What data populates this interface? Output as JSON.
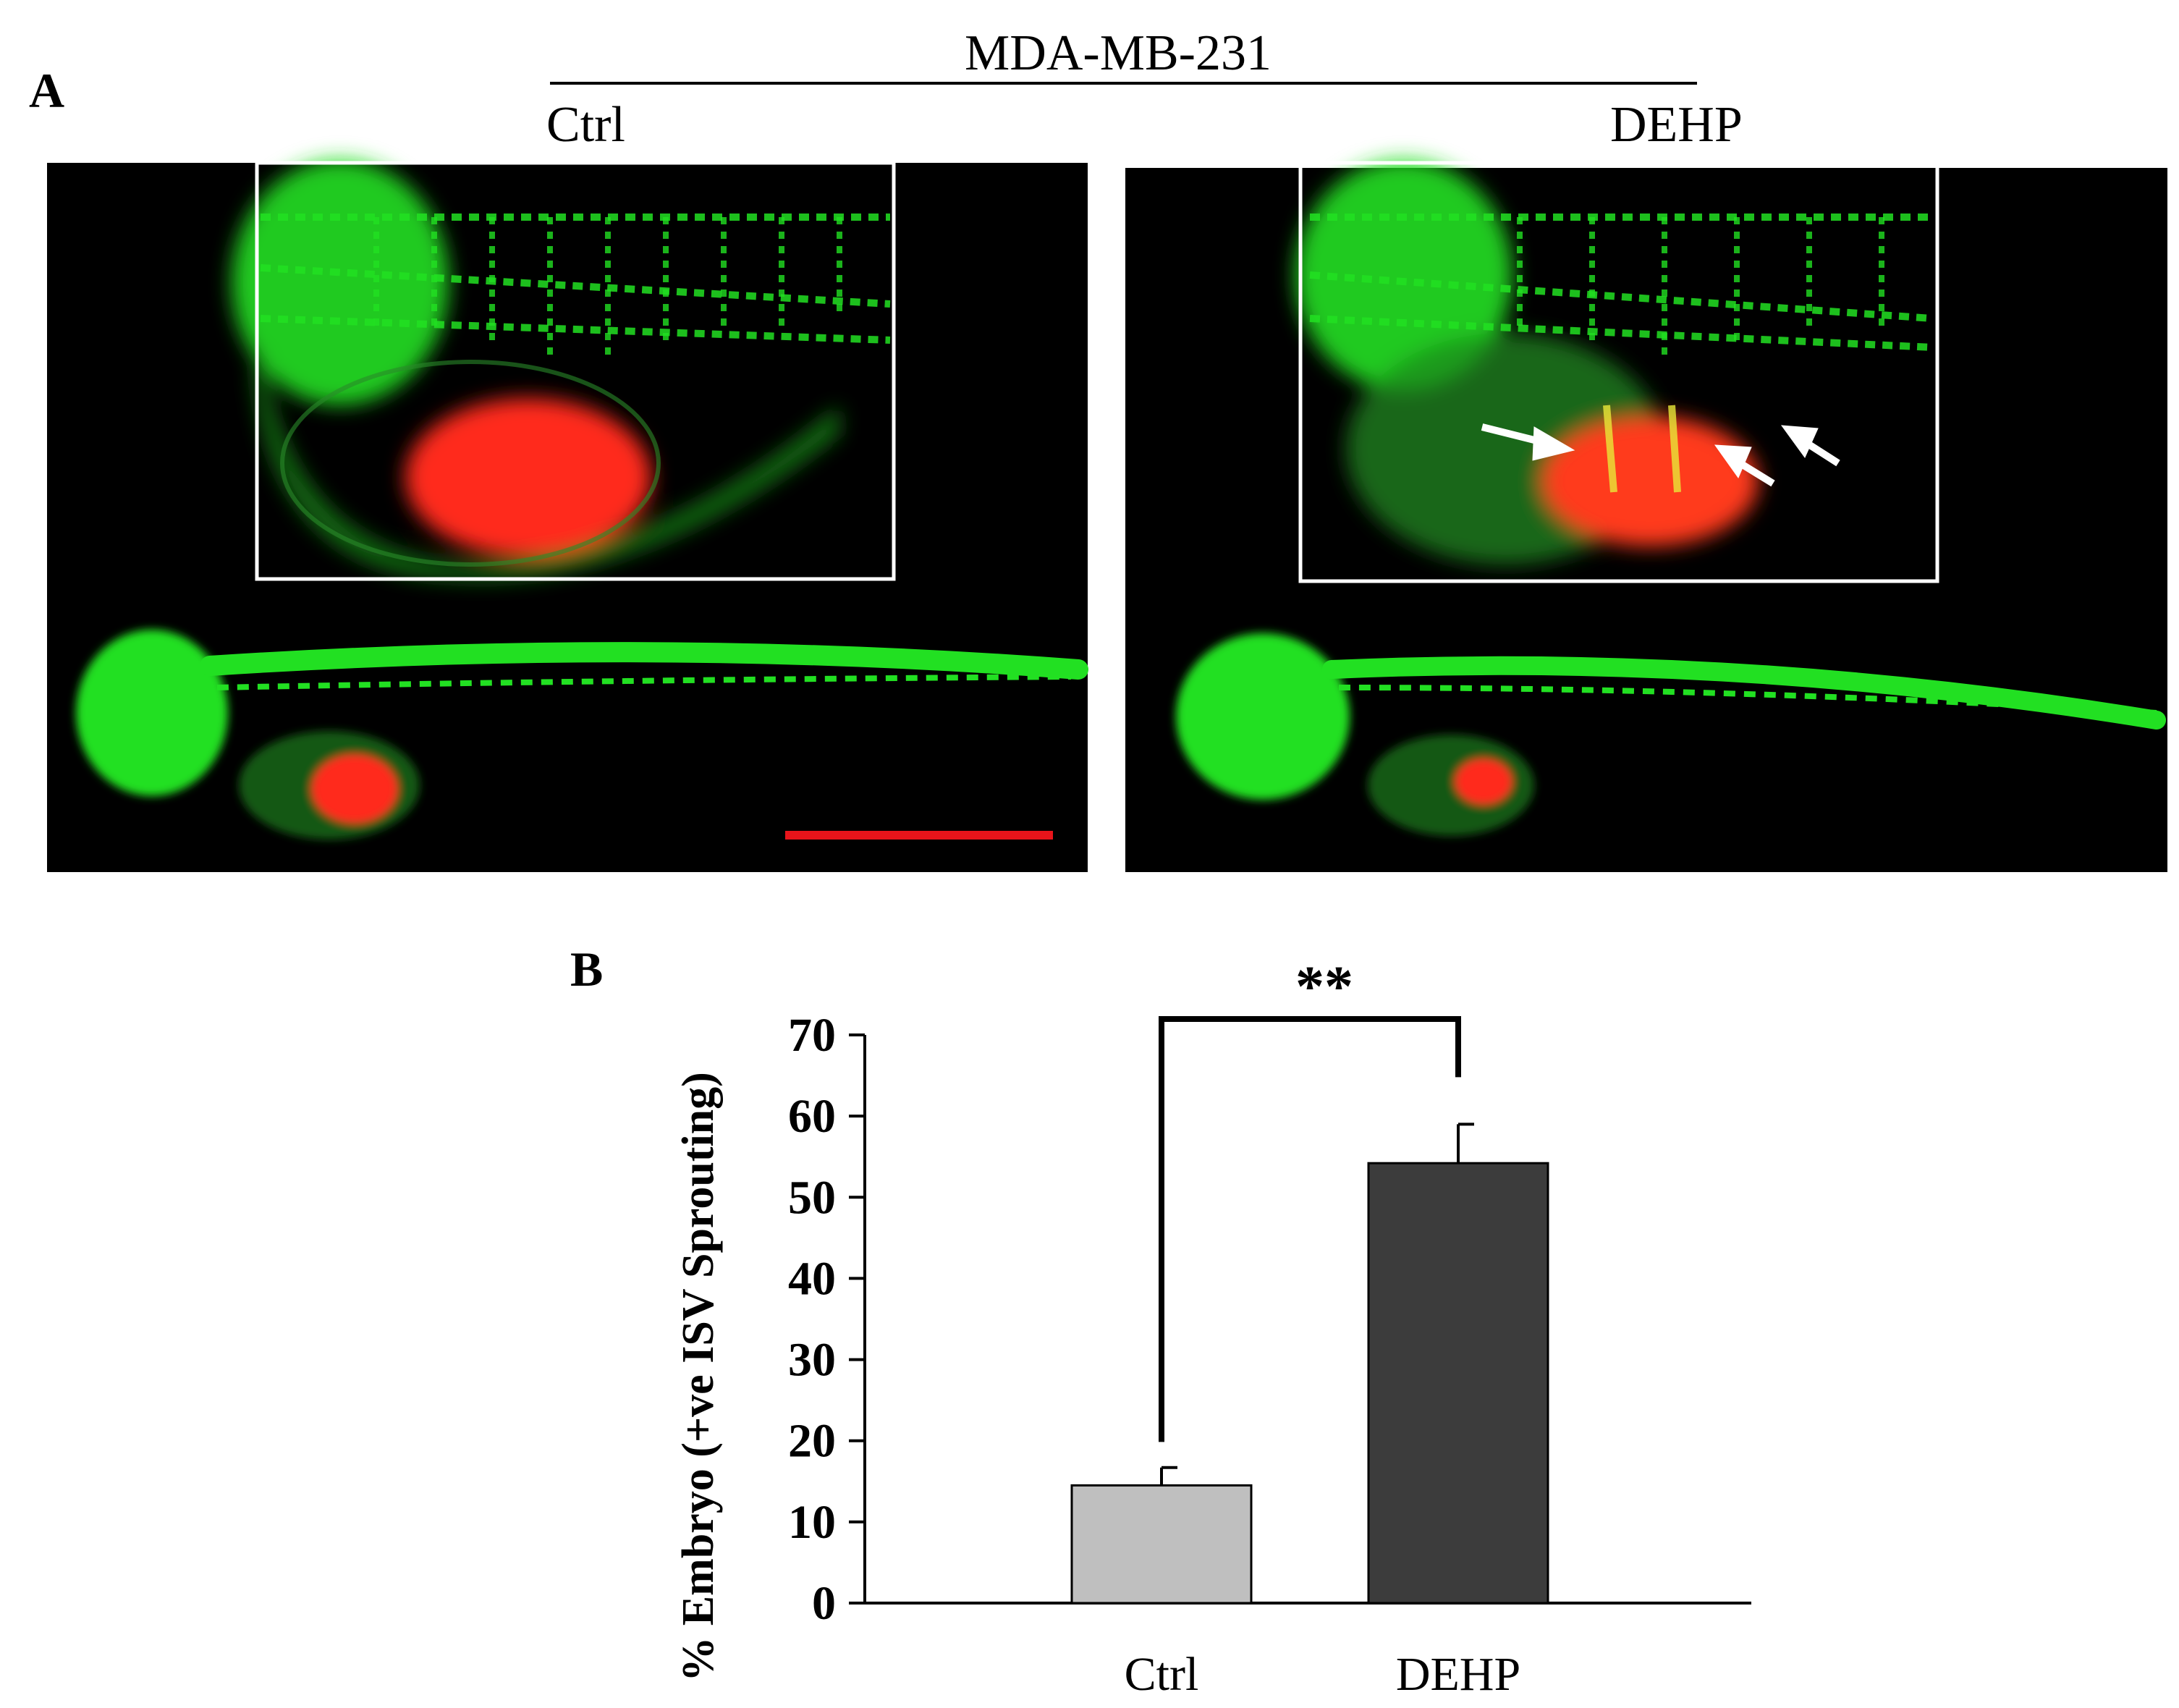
{
  "panel_a": {
    "letter": "A",
    "cell_line": "MDA-MB-231",
    "groups": [
      {
        "label": "Ctrl"
      },
      {
        "label": "DEHP"
      }
    ],
    "colors": {
      "background": "#000000",
      "vasculature": "#22e022",
      "tumor": "#ff2a1a",
      "inset_border": "#ffffff",
      "arrow": "#ffffff",
      "scale_bar": "#e8141a"
    }
  },
  "panel_b": {
    "letter": "B",
    "significance": "**"
  },
  "chart_data": {
    "type": "bar",
    "categories": [
      "Ctrl",
      "DEHP"
    ],
    "values": [
      14.5,
      54.2
    ],
    "errors": [
      2.2,
      4.8
    ],
    "bar_colors": [
      "#bfbfbf",
      "#3c3c3c"
    ],
    "ylabel": "% Embryo (+ve ISV Sprouting)",
    "xlabel": "",
    "ylim": [
      0,
      70
    ],
    "yticks": [
      0,
      10,
      20,
      30,
      40,
      50,
      60,
      70
    ],
    "grid": false,
    "significance": {
      "label": "**",
      "between": [
        "Ctrl",
        "DEHP"
      ]
    }
  }
}
